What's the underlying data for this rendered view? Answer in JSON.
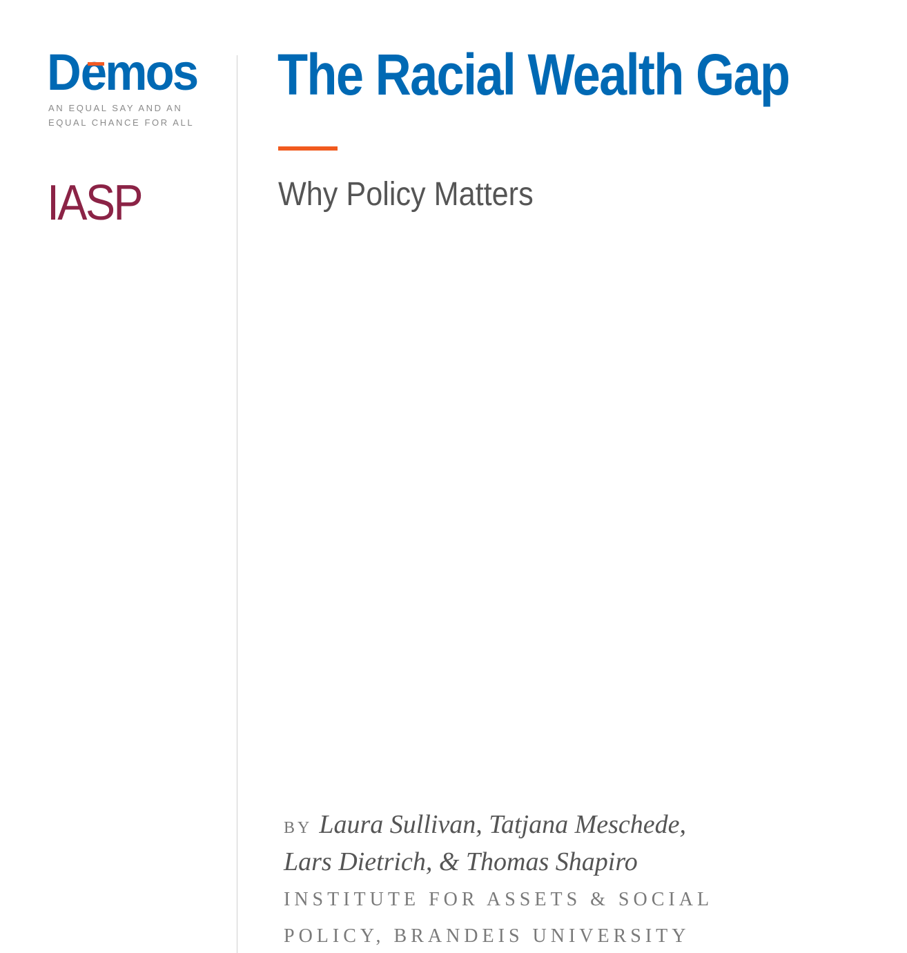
{
  "logos": {
    "demos": {
      "name": "Dēmos",
      "tagline_line1": "AN EQUAL SAY AND AN",
      "tagline_line2": "EQUAL CHANCE FOR ALL"
    },
    "iasp": {
      "name": "IASP"
    }
  },
  "cover": {
    "title": "The Racial Wealth Gap",
    "subtitle": "Why Policy Matters",
    "by_label": "BY",
    "authors_line1": "Laura Sullivan, Tatjana Meschede,",
    "authors_line2": "Lars Dietrich, & Thomas Shapiro",
    "institution_line1": "INSTITUTE FOR ASSETS & SOCIAL",
    "institution_line2": "POLICY, BRANDEIS UNIVERSITY"
  },
  "colors": {
    "brand_blue": "#0069b4",
    "accent_orange": "#f15a1e",
    "iasp_maroon": "#8b2346"
  }
}
